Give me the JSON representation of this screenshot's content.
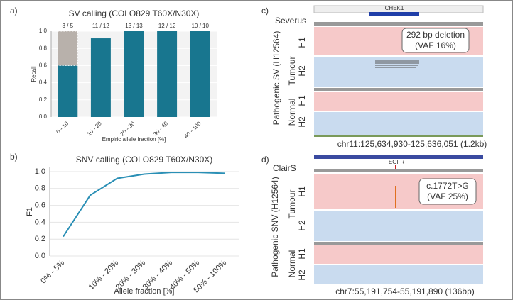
{
  "chart_data": [
    {
      "type": "bar",
      "panel": "a)",
      "title": "SV calling (COLO829 T60X/N30X)",
      "categories": [
        "0 - 10",
        "10 - 20",
        "20 - 30",
        "30 - 40",
        "40 - 100"
      ],
      "series": [
        {
          "color": "#18768f",
          "values": [
            0.6,
            0.917,
            1.0,
            1.0,
            1.0
          ]
        },
        {
          "color": "#b8b1ab",
          "values": [
            0.4,
            null,
            null,
            null,
            null
          ]
        }
      ],
      "bar_labels": [
        "3 / 5",
        "11 / 12",
        "13 / 13",
        "12 / 12",
        "10 / 10"
      ],
      "ylim": [
        0,
        1
      ],
      "yticks": [
        {
          "value": 0,
          "label": "0.0"
        },
        0.2,
        0.4,
        0.6,
        0.8,
        {
          "value": 1,
          "label": "1.0"
        }
      ],
      "ylabel": "Recall",
      "xlabel": "Empiric allele fraction [%]",
      "grid": true
    },
    {
      "type": "line",
      "panel": "b)",
      "title": "SNV calling (COLO829 T60X/N30X)",
      "categories": [
        "0% - 5%",
        null,
        "10% - 20%",
        "20% - 30%",
        "30% - 40%",
        "40% - 50%",
        "50% - 100%"
      ],
      "values": [
        0.23,
        0.72,
        0.92,
        0.97,
        0.99,
        0.99,
        0.98
      ],
      "color": "#2a8fb5",
      "ylim": [
        0,
        1.05
      ],
      "yticks": [
        {
          "value": 0,
          "label": "0.0"
        },
        0.2,
        0.4,
        0.6,
        0.8,
        {
          "value": 1,
          "label": "1.0"
        }
      ],
      "ylabel": "F1",
      "xlabel": "Allele fraction [%]",
      "grid": true
    }
  ],
  "panels": [
    {
      "label": "c)",
      "tool": "Severus",
      "gene": "CHEK1",
      "annotation": [
        "292 bp deletion",
        "(VAF 16%)"
      ],
      "ylabel": "Pathogenic SV (H12564)",
      "samples": [
        "Tumour",
        "Normal"
      ],
      "haplotypes": [
        "H1",
        "H2"
      ],
      "region": "chr11:125,634,930-125,636,051 (1.2kb)"
    },
    {
      "label": "d)",
      "tool": "ClairS",
      "gene": "EGFR",
      "annotation": [
        "c.1772T>G",
        "(VAF 25%)"
      ],
      "ylabel": "Pathogenic SNV (H12564)",
      "samples": [
        "Tumour",
        "Normal"
      ],
      "haplotypes": [
        "H1",
        "H2"
      ],
      "region": "chr7:55,191,754-55,191,890 (136bp)"
    }
  ]
}
